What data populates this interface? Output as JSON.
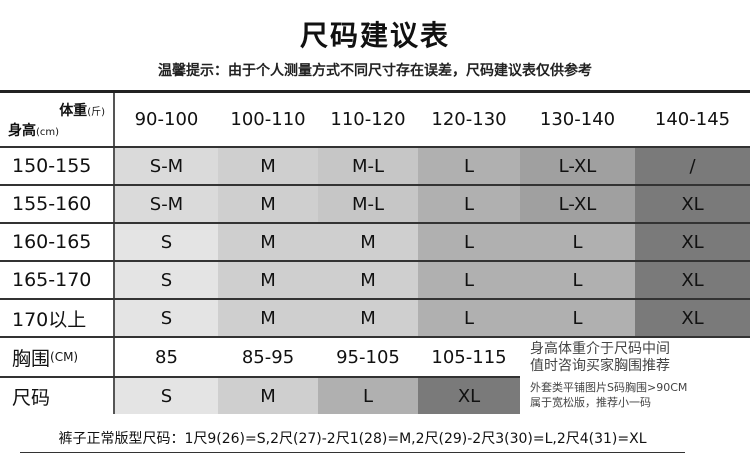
{
  "title": "尺码建议表",
  "subtitle": "温馨提示：由于个人测量方式不同尺寸存在误差，尺码建议表仅供参考",
  "header": {
    "weight_label": "体重",
    "weight_unit": "(斤)",
    "height_label": "身高",
    "height_unit": "(cm)",
    "columns": [
      "90-100",
      "100-110",
      "110-120",
      "120-130",
      "130-140",
      "140-145"
    ]
  },
  "rows": [
    {
      "height": "150-155",
      "sizes": [
        "S-M",
        "M",
        "M-L",
        "L",
        "L-XL",
        "/"
      ]
    },
    {
      "height": "155-160",
      "sizes": [
        "S-M",
        "M",
        "M-L",
        "L",
        "L-XL",
        "XL"
      ]
    },
    {
      "height": "160-165",
      "sizes": [
        "S",
        "M",
        "M",
        "L",
        "L",
        "XL"
      ]
    },
    {
      "height": "165-170",
      "sizes": [
        "S",
        "M",
        "M",
        "L",
        "L",
        "XL"
      ]
    },
    {
      "height": "170以上",
      "sizes": [
        "S",
        "M",
        "M",
        "L",
        "L",
        "XL"
      ]
    }
  ],
  "chest": {
    "label": "胸围",
    "unit": "(CM)",
    "values": [
      "85",
      "85-95",
      "95-105",
      "105-115"
    ]
  },
  "size": {
    "label": "尺码",
    "values": [
      "S",
      "M",
      "L",
      "XL"
    ]
  },
  "notes": {
    "line1": "身高体重介于尺码中间",
    "line2": "值时咨询买家胸围推荐",
    "line3": "外套类平铺图片S码胸围>90CM",
    "line4": "属于宽松版，推荐小一码"
  },
  "pants": "裤子正常版型尺码：1尺9(26)=S,2尺(27)-2尺1(28)=M,2尺(29)-2尺3(30)=L,2尺4(31)=XL",
  "colors": {
    "S": "#e4e4e4",
    "S-M": "#dadada",
    "M": "#cfcfcf",
    "M-L": "#c6c6c6",
    "L": "#b0b0b0",
    "L-XL": "#a0a0a0",
    "XL": "#7a7a7a",
    "/": "#7a7a7a"
  }
}
